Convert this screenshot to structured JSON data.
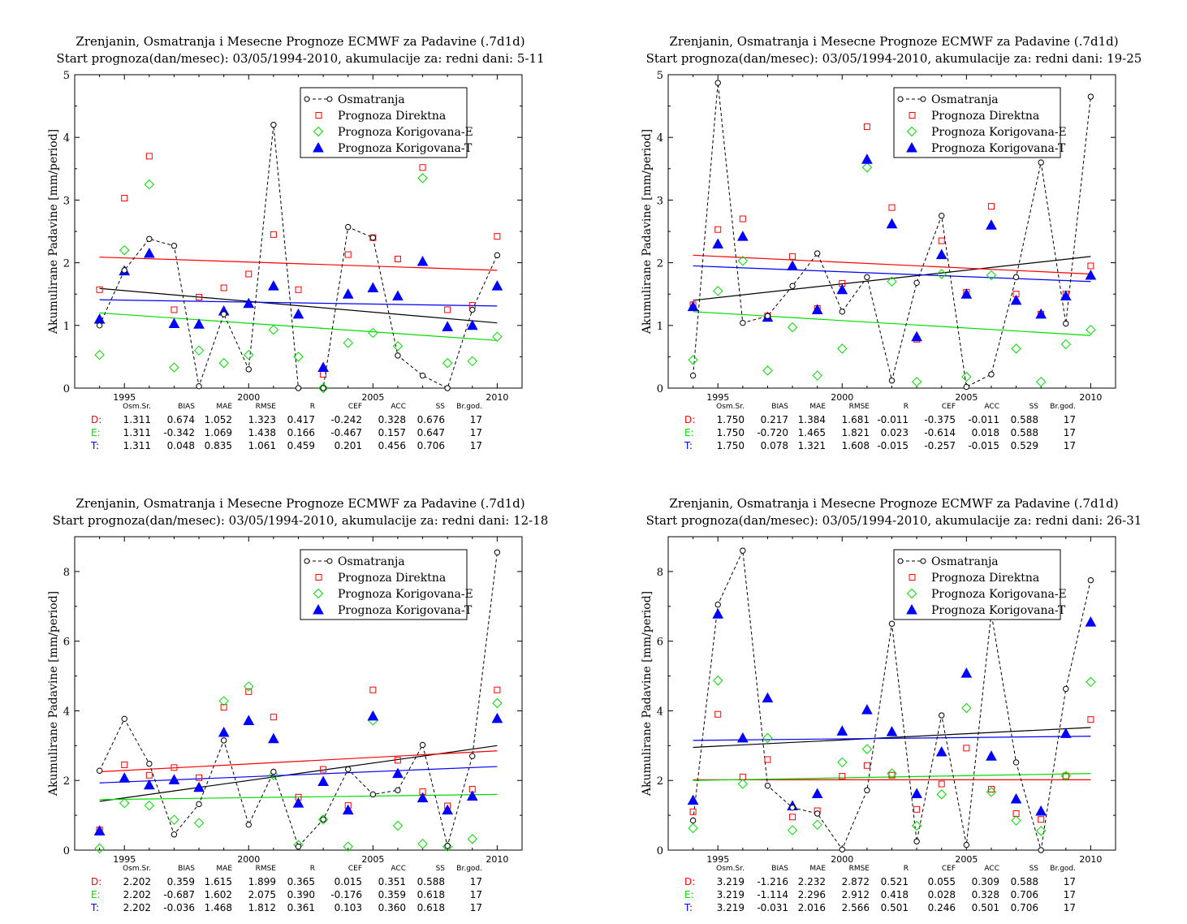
{
  "colors": {
    "obs": "#000000",
    "D": "#ff0000",
    "E": "#00dd00",
    "T": "#0000ff"
  },
  "legend": [
    "Osmatranja",
    "Prognoza Direktna",
    "Prognoza Korigovana-E",
    "Prognoza Korigovana-T"
  ],
  "ylabel": "Akumulirane Padavine [mm/period]",
  "stat_headers": [
    "Osm.Sr.",
    "BIAS",
    "MAE",
    "RMSE",
    "R",
    "CEF",
    "ACC",
    "SS",
    "Br.god."
  ],
  "charts": [
    {
      "title": "Zrenjanin, Osmatranja i Mesecne Prognoze ECMWF za Padavine (.7d1d)",
      "subtitle": "Start prognoza(dan/mesec): 03/05/1994-2010, akumulacije za: redni dani: 5-11",
      "stats": [
        {
          "label": "D:",
          "values": [
            "1.311",
            "0.674",
            "1.052",
            "1.323",
            "0.417",
            "-0.242",
            "0.328",
            "0.676",
            "17"
          ]
        },
        {
          "label": "E:",
          "values": [
            "1.311",
            "-0.342",
            "1.069",
            "1.438",
            "0.166",
            "-0.467",
            "0.157",
            "0.647",
            "17"
          ]
        },
        {
          "label": "T:",
          "values": [
            "1.311",
            "0.048",
            "0.835",
            "1.061",
            "0.459",
            "0.201",
            "0.456",
            "0.706",
            "17"
          ]
        }
      ]
    },
    {
      "title": "Zrenjanin, Osmatranja i Mesecne Prognoze ECMWF za Padavine (.7d1d)",
      "subtitle": "Start prognoza(dan/mesec): 03/05/1994-2010, akumulacije za: redni dani: 19-25",
      "stats": [
        {
          "label": "D:",
          "values": [
            "1.750",
            "0.217",
            "1.384",
            "1.681",
            "-0.011",
            "-0.375",
            "-0.011",
            "0.588",
            "17"
          ]
        },
        {
          "label": "E:",
          "values": [
            "1.750",
            "-0.720",
            "1.465",
            "1.821",
            "0.023",
            "-0.614",
            "0.018",
            "0.588",
            "17"
          ]
        },
        {
          "label": "T:",
          "values": [
            "1.750",
            "0.078",
            "1.321",
            "1.608",
            "-0.015",
            "-0.257",
            "-0.015",
            "0.529",
            "17"
          ]
        }
      ]
    },
    {
      "title": "Zrenjanin, Osmatranja i Mesecne Prognoze ECMWF za Padavine (.7d1d)",
      "subtitle": "Start prognoza(dan/mesec): 03/05/1994-2010, akumulacije za: redni dani: 12-18",
      "stats": [
        {
          "label": "D:",
          "values": [
            "2.202",
            "0.359",
            "1.615",
            "1.899",
            "0.365",
            "0.015",
            "0.351",
            "0.588",
            "17"
          ]
        },
        {
          "label": "E:",
          "values": [
            "2.202",
            "-0.687",
            "1.602",
            "2.075",
            "0.390",
            "-0.176",
            "0.359",
            "0.618",
            "17"
          ]
        },
        {
          "label": "T:",
          "values": [
            "2.202",
            "-0.036",
            "1.468",
            "1.812",
            "0.361",
            "0.103",
            "0.360",
            "0.618",
            "17"
          ]
        }
      ]
    },
    {
      "title": "Zrenjanin, Osmatranja i Mesecne Prognoze ECMWF za Padavine (.7d1d)",
      "subtitle": "Start prognoza(dan/mesec): 03/05/1994-2010, akumulacije za: redni dani: 26-31",
      "stats": [
        {
          "label": "D:",
          "values": [
            "3.219",
            "-1.216",
            "2.232",
            "2.872",
            "0.521",
            "0.055",
            "0.309",
            "0.588",
            "17"
          ]
        },
        {
          "label": "E:",
          "values": [
            "3.219",
            "-1.114",
            "2.296",
            "2.912",
            "0.418",
            "0.028",
            "0.328",
            "0.706",
            "17"
          ]
        },
        {
          "label": "T:",
          "values": [
            "3.219",
            "-0.031",
            "2.016",
            "2.566",
            "0.501",
            "0.246",
            "0.501",
            "0.706",
            "17"
          ]
        }
      ]
    }
  ],
  "chart_data": [
    {
      "type": "scatter",
      "xlim": [
        1993,
        2011
      ],
      "ylim": [
        0,
        5
      ],
      "yticks": [
        0,
        1,
        2,
        3,
        4,
        5
      ],
      "xticks": [
        1995,
        2000,
        2005,
        2010
      ],
      "years": [
        1994,
        1995,
        1996,
        1997,
        1998,
        1999,
        2000,
        2001,
        2002,
        2003,
        2004,
        2005,
        2006,
        2007,
        2008,
        2009,
        2010
      ],
      "obs": [
        1.0,
        1.88,
        2.38,
        2.27,
        0.03,
        1.18,
        0.3,
        4.2,
        0.0,
        0.0,
        2.57,
        2.4,
        0.52,
        0.2,
        0.0,
        1.25,
        2.12
      ],
      "D": [
        1.57,
        3.03,
        3.7,
        1.25,
        1.45,
        1.6,
        1.82,
        2.45,
        1.57,
        0.22,
        2.13,
        2.4,
        2.06,
        3.52,
        1.25,
        1.32,
        2.42
      ],
      "E": [
        0.53,
        2.2,
        3.25,
        0.33,
        0.6,
        0.4,
        0.53,
        0.93,
        0.5,
        0.0,
        0.72,
        0.88,
        0.67,
        3.35,
        0.4,
        0.43,
        0.82
      ],
      "T": [
        1.1,
        1.87,
        2.15,
        1.03,
        1.02,
        1.23,
        1.35,
        1.63,
        1.18,
        0.33,
        1.5,
        1.6,
        1.47,
        2.02,
        0.98,
        1.0,
        1.63
      ],
      "trend": {
        "obs": [
          1.59,
          1.04
        ],
        "D": [
          2.09,
          1.88
        ],
        "E": [
          1.2,
          0.76
        ],
        "T": [
          1.41,
          1.31
        ]
      }
    },
    {
      "type": "scatter",
      "xlim": [
        1993,
        2011
      ],
      "ylim": [
        0,
        5
      ],
      "yticks": [
        0,
        1,
        2,
        3,
        4,
        5
      ],
      "xticks": [
        1995,
        2000,
        2005,
        2010
      ],
      "years": [
        1994,
        1995,
        1996,
        1997,
        1998,
        1999,
        2000,
        2001,
        2002,
        2003,
        2004,
        2005,
        2006,
        2007,
        2008,
        2009,
        2010
      ],
      "obs": [
        0.2,
        4.87,
        1.04,
        1.15,
        1.63,
        2.15,
        1.22,
        1.77,
        0.12,
        1.68,
        2.75,
        0.02,
        0.22,
        1.77,
        3.6,
        1.03,
        4.65
      ],
      "D": [
        1.33,
        2.53,
        2.7,
        1.15,
        2.1,
        1.27,
        1.67,
        4.17,
        2.88,
        0.78,
        2.35,
        1.53,
        2.9,
        1.5,
        1.18,
        1.5,
        1.95
      ],
      "E": [
        0.45,
        1.55,
        2.03,
        0.28,
        0.97,
        0.2,
        0.63,
        3.52,
        1.7,
        0.1,
        1.82,
        0.18,
        1.8,
        0.63,
        0.1,
        0.7,
        0.93
      ],
      "T": [
        1.3,
        2.3,
        2.42,
        1.13,
        1.95,
        1.25,
        1.57,
        3.65,
        2.62,
        0.82,
        2.13,
        1.5,
        2.6,
        1.4,
        1.18,
        1.47,
        1.8
      ],
      "trend": {
        "obs": [
          1.4,
          2.1
        ],
        "D": [
          2.12,
          1.82
        ],
        "E": [
          1.22,
          0.84
        ],
        "T": [
          1.95,
          1.7
        ]
      }
    },
    {
      "type": "scatter",
      "xlim": [
        1993,
        2011
      ],
      "ylim": [
        0,
        9
      ],
      "yticks": [
        0,
        2,
        4,
        6,
        8
      ],
      "xticks": [
        1995,
        2000,
        2005,
        2010
      ],
      "years": [
        1994,
        1995,
        1996,
        1997,
        1998,
        1999,
        2000,
        2001,
        2002,
        2003,
        2004,
        2005,
        2006,
        2007,
        2008,
        2009,
        2010
      ],
      "obs": [
        2.28,
        3.77,
        2.48,
        0.45,
        1.32,
        3.15,
        0.73,
        2.25,
        0.1,
        0.88,
        2.32,
        1.6,
        1.72,
        3.02,
        0.12,
        2.7,
        8.55
      ],
      "D": [
        0.58,
        2.45,
        2.15,
        2.37,
        2.08,
        4.1,
        4.55,
        3.82,
        1.52,
        2.32,
        1.28,
        4.6,
        2.58,
        1.68,
        1.27,
        1.75,
        4.6
      ],
      "E": [
        0.05,
        1.35,
        1.28,
        0.87,
        0.78,
        4.28,
        4.7,
        2.15,
        0.15,
        0.88,
        0.1,
        3.72,
        0.7,
        0.18,
        0.1,
        0.32,
        4.22
      ],
      "T": [
        0.55,
        2.07,
        1.87,
        2.02,
        1.8,
        3.38,
        3.72,
        3.2,
        1.35,
        1.97,
        1.15,
        3.85,
        2.2,
        1.5,
        1.15,
        1.55,
        3.78
      ],
      "trend": {
        "obs": [
          1.4,
          3.0
        ],
        "D": [
          2.25,
          2.85
        ],
        "E": [
          1.45,
          1.6
        ],
        "T": [
          1.93,
          2.4
        ]
      }
    },
    {
      "type": "scatter",
      "xlim": [
        1993,
        2011
      ],
      "ylim": [
        0,
        9
      ],
      "yticks": [
        0,
        2,
        4,
        6,
        8
      ],
      "xticks": [
        1995,
        2000,
        2005,
        2010
      ],
      "years": [
        1994,
        1995,
        1996,
        1997,
        1998,
        1999,
        2000,
        2001,
        2002,
        2003,
        2004,
        2005,
        2006,
        2007,
        2008,
        2009,
        2010
      ],
      "obs": [
        0.85,
        7.05,
        8.6,
        1.85,
        1.22,
        1.05,
        0.02,
        1.72,
        6.5,
        0.25,
        3.87,
        0.15,
        6.8,
        2.52,
        0.0,
        4.63,
        7.75
      ],
      "D": [
        1.1,
        3.9,
        2.1,
        2.6,
        0.95,
        1.13,
        2.12,
        2.43,
        2.15,
        1.17,
        1.9,
        2.93,
        1.75,
        1.05,
        0.88,
        2.13,
        3.75
      ],
      "E": [
        0.63,
        4.87,
        1.9,
        3.22,
        0.57,
        0.73,
        2.52,
        2.9,
        2.2,
        0.7,
        1.6,
        4.08,
        1.67,
        0.85,
        0.55,
        2.13,
        4.83
      ],
      "T": [
        1.43,
        6.78,
        3.22,
        4.37,
        1.27,
        1.62,
        3.42,
        4.03,
        3.4,
        1.62,
        2.82,
        5.08,
        2.7,
        1.47,
        1.12,
        3.35,
        6.55
      ],
      "trend": {
        "obs": [
          2.95,
          3.52
        ],
        "D": [
          2.02,
          2.02
        ],
        "E": [
          2.0,
          2.2
        ],
        "T": [
          3.15,
          3.27
        ]
      }
    }
  ]
}
